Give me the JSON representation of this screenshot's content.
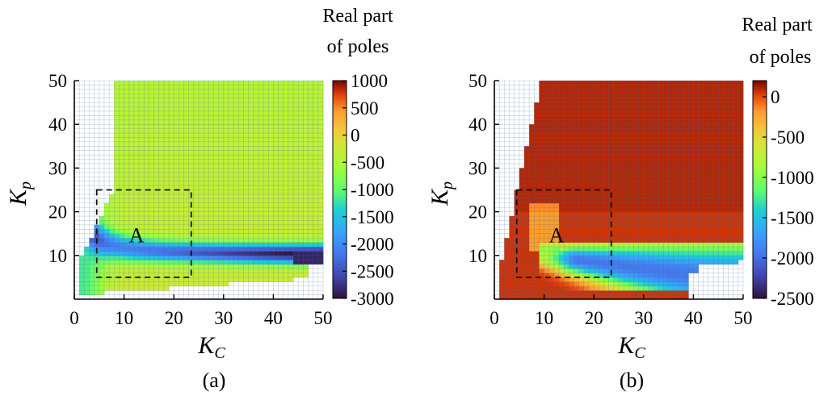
{
  "chart_data": [
    {
      "type": "heatmap",
      "panel_label": "(a)",
      "xlabel": "K",
      "xlabel_sub": "C",
      "ylabel": "K",
      "ylabel_sub": "p",
      "xlim": [
        0,
        50
      ],
      "ylim": [
        0,
        50
      ],
      "xticks": [
        "0",
        "10",
        "20",
        "30",
        "40",
        "50"
      ],
      "yticks": [
        "10",
        "20",
        "30",
        "40",
        "50"
      ],
      "colorbar": {
        "title_lines": [
          "Real part",
          "of poles"
        ],
        "range": [
          -3000,
          1000
        ],
        "tick_labels": [
          "1000",
          "500",
          "0",
          "-500",
          "-1000",
          "-1500",
          "-2000",
          "-2500",
          "-3000"
        ],
        "colormap": "turbo"
      },
      "regions": [
        {
          "label": "A",
          "x_range": [
            4.5,
            23.5
          ],
          "y_range": [
            5,
            25
          ]
        }
      ],
      "field": {
        "stable_background": -350,
        "valley_value": -2800,
        "valley_curve": "Kp ≈ 10 + 18/Kc, from Kc=0 to Kc=50 (band near Kp 9-11 for large Kc)",
        "left_band_value": -900,
        "unstable_region": "upper-left wedge (Kp > 2.5*Kc+1 for Kc between 1 and 8) and bottom strip (Kp below ~1 to ~5)"
      },
      "grid": true
    },
    {
      "type": "heatmap",
      "panel_label": "(b)",
      "xlabel": "K",
      "xlabel_sub": "C",
      "ylabel": "K",
      "ylabel_sub": "p",
      "xlim": [
        0,
        50
      ],
      "ylim": [
        0,
        50
      ],
      "xticks": [
        "0",
        "10",
        "20",
        "30",
        "40",
        "50"
      ],
      "yticks": [
        "10",
        "20",
        "30",
        "40",
        "50"
      ],
      "colorbar": {
        "title_lines": [
          "Real part",
          "of poles"
        ],
        "range": [
          -2500,
          200
        ],
        "tick_labels": [
          "0",
          "-500",
          "-1000",
          "-1500",
          "-2000",
          "-2500"
        ],
        "colormap": "turbo"
      },
      "regions": [
        {
          "label": "A",
          "x_range": [
            4.5,
            23.5
          ],
          "y_range": [
            5,
            25
          ]
        }
      ],
      "field": {
        "stable_background": 80,
        "valley_value": -1900,
        "valley_curve": "fan emanating near Kc≈10, Kp≈10 spreading to Kp≈3-9 at Kc=50",
        "unstable_region": "left wedge Kp > 5*Kc (Kc<10) and lower-right corner below ~Kp 8"
      },
      "grid": true
    }
  ]
}
